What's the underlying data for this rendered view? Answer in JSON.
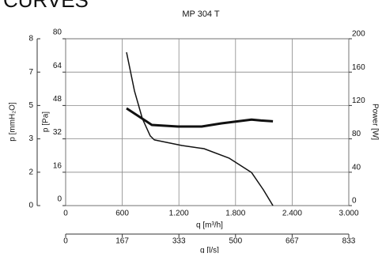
{
  "page_heading": "CURVES",
  "chart_data": {
    "type": "line",
    "title": "MP 304 T",
    "xlabel": "q [m³/h]",
    "x2label": "q [l/s]",
    "ylabel": "p [Pa]",
    "y3label": "p [mmH₂O]",
    "y2label": "Power [W]",
    "xlim": [
      0,
      3000
    ],
    "xticks": [
      0,
      600,
      {
        "value": 1200,
        "label": "1.200"
      },
      {
        "value": 1800,
        "label": "1.800"
      },
      {
        "value": 2400,
        "label": "2.400"
      },
      {
        "value": 3000,
        "label": "3.000"
      }
    ],
    "x2lim": [
      0,
      833.33
    ],
    "x2ticks": [
      0,
      {
        "value": 166.67,
        "label": "167"
      },
      {
        "value": 333.33,
        "label": "333"
      },
      {
        "value": 500,
        "label": "500"
      },
      {
        "value": 666.67,
        "label": "667"
      },
      {
        "value": 833.33,
        "label": "833"
      }
    ],
    "ylim": [
      0,
      80
    ],
    "yticks": [
      0,
      16,
      32,
      48,
      64,
      80
    ],
    "y3lim": [
      0,
      8.155
    ],
    "y3ticks": [
      0,
      {
        "value": 1.631,
        "label": "2"
      },
      {
        "value": 3.262,
        "label": "3"
      },
      {
        "value": 4.893,
        "label": "5"
      },
      {
        "value": 6.524,
        "label": "7"
      },
      {
        "value": 8.155,
        "label": "8"
      }
    ],
    "y2lim": [
      0,
      200
    ],
    "y2ticks": [
      0,
      40,
      80,
      120,
      160,
      200
    ],
    "grid": true,
    "series": [
      {
        "color": "#111111",
        "axis": "y",
        "width": 1.5,
        "x": [
          645,
          729,
          813,
          897,
          939,
          1232,
          1466,
          1734,
          1969,
          2095,
          2196
        ],
        "values": [
          73.5,
          55,
          41.7,
          33.4,
          31.5,
          28.8,
          27.3,
          22.7,
          15.9,
          7.6,
          0
        ]
      },
      {
        "color": "#111111",
        "axis": "y2",
        "width": 3,
        "x": [
          645,
          855,
          913,
          1190,
          1441,
          1651,
          1969,
          2070,
          2196
        ],
        "values": [
          116.6,
          101,
          96.7,
          94.8,
          94.8,
          98.6,
          103,
          102,
          101
        ]
      }
    ]
  }
}
